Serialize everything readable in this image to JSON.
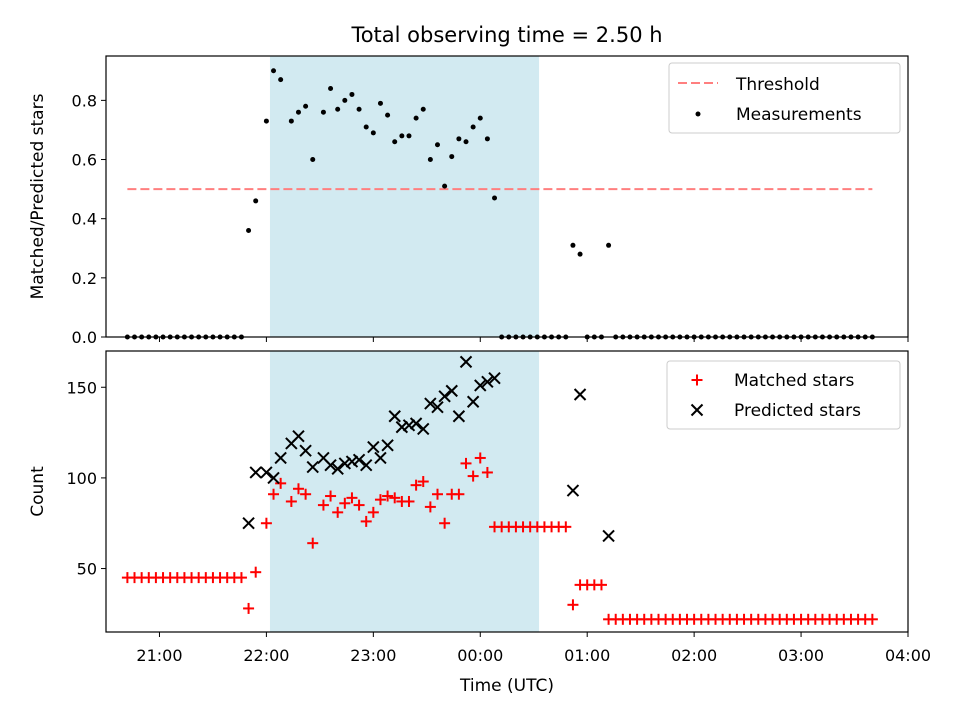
{
  "chart_data": [
    {
      "type": "scatter",
      "title": "Total observing time = 2.50 h",
      "xlabel": "",
      "ylabel": "Matched/Predicted stars",
      "ylim": [
        0,
        0.95
      ],
      "xlim": [
        "20:30",
        "04:00"
      ],
      "yticks": [
        "0.0",
        "0.2",
        "0.4",
        "0.6",
        "0.8"
      ],
      "highlight_span": {
        "from": "22:02",
        "to": "00:33",
        "color": "#add8e6"
      },
      "legend": {
        "position": "top-right"
      },
      "series": [
        {
          "name": "Threshold",
          "kind": "dashed-line",
          "color": "#ff7f7f",
          "points": [
            [
              "20:42",
              0.5
            ],
            [
              "03:40",
              0.5
            ]
          ]
        },
        {
          "name": "Measurements",
          "kind": "dot",
          "color": "#000000",
          "points": [
            [
              "20:42",
              0
            ],
            [
              "20:46",
              0
            ],
            [
              "20:50",
              0
            ],
            [
              "20:54",
              0
            ],
            [
              "20:58",
              0
            ],
            [
              "21:02",
              0
            ],
            [
              "21:06",
              0
            ],
            [
              "21:10",
              0
            ],
            [
              "21:14",
              0
            ],
            [
              "21:18",
              0
            ],
            [
              "21:22",
              0
            ],
            [
              "21:26",
              0
            ],
            [
              "21:30",
              0
            ],
            [
              "21:34",
              0
            ],
            [
              "21:38",
              0
            ],
            [
              "21:42",
              0
            ],
            [
              "21:46",
              0
            ],
            [
              "21:50",
              0.36
            ],
            [
              "21:54",
              0.46
            ],
            [
              "22:00",
              0.73
            ],
            [
              "22:04",
              0.9
            ],
            [
              "22:08",
              0.87
            ],
            [
              "22:14",
              0.73
            ],
            [
              "22:18",
              0.76
            ],
            [
              "22:22",
              0.78
            ],
            [
              "22:26",
              0.6
            ],
            [
              "22:32",
              0.76
            ],
            [
              "22:36",
              0.84
            ],
            [
              "22:40",
              0.77
            ],
            [
              "22:44",
              0.8
            ],
            [
              "22:48",
              0.82
            ],
            [
              "22:52",
              0.77
            ],
            [
              "22:56",
              0.71
            ],
            [
              "23:00",
              0.69
            ],
            [
              "23:04",
              0.79
            ],
            [
              "23:08",
              0.75
            ],
            [
              "23:12",
              0.66
            ],
            [
              "23:16",
              0.68
            ],
            [
              "23:20",
              0.68
            ],
            [
              "23:24",
              0.74
            ],
            [
              "23:28",
              0.77
            ],
            [
              "23:32",
              0.6
            ],
            [
              "23:36",
              0.65
            ],
            [
              "23:40",
              0.51
            ],
            [
              "23:44",
              0.61
            ],
            [
              "23:48",
              0.67
            ],
            [
              "23:52",
              0.66
            ],
            [
              "23:56",
              0.71
            ],
            [
              "00:00",
              0.74
            ],
            [
              "00:04",
              0.67
            ],
            [
              "00:08",
              0.47
            ],
            [
              "00:12",
              0
            ],
            [
              "00:16",
              0
            ],
            [
              "00:20",
              0
            ],
            [
              "00:24",
              0
            ],
            [
              "00:28",
              0
            ],
            [
              "00:32",
              0
            ],
            [
              "00:36",
              0
            ],
            [
              "00:40",
              0
            ],
            [
              "00:44",
              0
            ],
            [
              "00:48",
              0
            ],
            [
              "00:52",
              0.31
            ],
            [
              "00:56",
              0.28
            ],
            [
              "01:00",
              0
            ],
            [
              "01:04",
              0
            ],
            [
              "01:08",
              0
            ],
            [
              "01:12",
              0.31
            ],
            [
              "01:16",
              0
            ],
            [
              "01:20",
              0
            ],
            [
              "01:24",
              0
            ],
            [
              "01:28",
              0
            ],
            [
              "01:32",
              0
            ],
            [
              "01:36",
              0
            ],
            [
              "01:40",
              0
            ],
            [
              "01:44",
              0
            ],
            [
              "01:48",
              0
            ],
            [
              "01:52",
              0
            ],
            [
              "01:56",
              0
            ],
            [
              "02:00",
              0
            ],
            [
              "02:04",
              0
            ],
            [
              "02:08",
              0
            ],
            [
              "02:12",
              0
            ],
            [
              "02:16",
              0
            ],
            [
              "02:20",
              0
            ],
            [
              "02:24",
              0
            ],
            [
              "02:28",
              0
            ],
            [
              "02:32",
              0
            ],
            [
              "02:36",
              0
            ],
            [
              "02:40",
              0
            ],
            [
              "02:44",
              0
            ],
            [
              "02:48",
              0
            ],
            [
              "02:52",
              0
            ],
            [
              "02:56",
              0
            ],
            [
              "03:00",
              0
            ],
            [
              "03:04",
              0
            ],
            [
              "03:08",
              0
            ],
            [
              "03:12",
              0
            ],
            [
              "03:16",
              0
            ],
            [
              "03:20",
              0
            ],
            [
              "03:24",
              0
            ],
            [
              "03:28",
              0
            ],
            [
              "03:32",
              0
            ],
            [
              "03:36",
              0
            ],
            [
              "03:40",
              0
            ]
          ]
        }
      ]
    },
    {
      "type": "scatter",
      "title": "",
      "xlabel": "Time (UTC)",
      "ylabel": "Count",
      "ylim": [
        15,
        170
      ],
      "xlim": [
        "20:30",
        "04:00"
      ],
      "yticks": [
        "50",
        "100",
        "150"
      ],
      "xticks": [
        "21:00",
        "22:00",
        "23:00",
        "00:00",
        "01:00",
        "02:00",
        "03:00",
        "04:00"
      ],
      "highlight_span": {
        "from": "22:02",
        "to": "00:33",
        "color": "#add8e6"
      },
      "legend": {
        "position": "top-right"
      },
      "series": [
        {
          "name": "Matched stars",
          "kind": "plus",
          "color": "#ff0000",
          "points": [
            [
              "20:42",
              45
            ],
            [
              "20:46",
              45
            ],
            [
              "20:50",
              45
            ],
            [
              "20:54",
              45
            ],
            [
              "20:58",
              45
            ],
            [
              "21:02",
              45
            ],
            [
              "21:06",
              45
            ],
            [
              "21:10",
              45
            ],
            [
              "21:14",
              45
            ],
            [
              "21:18",
              45
            ],
            [
              "21:22",
              45
            ],
            [
              "21:26",
              45
            ],
            [
              "21:30",
              45
            ],
            [
              "21:34",
              45
            ],
            [
              "21:38",
              45
            ],
            [
              "21:42",
              45
            ],
            [
              "21:46",
              45
            ],
            [
              "21:50",
              28
            ],
            [
              "21:54",
              48
            ],
            [
              "22:00",
              75
            ],
            [
              "22:04",
              91
            ],
            [
              "22:08",
              97
            ],
            [
              "22:14",
              87
            ],
            [
              "22:18",
              94
            ],
            [
              "22:22",
              91
            ],
            [
              "22:26",
              64
            ],
            [
              "22:32",
              85
            ],
            [
              "22:36",
              90
            ],
            [
              "22:40",
              81
            ],
            [
              "22:44",
              86
            ],
            [
              "22:48",
              89
            ],
            [
              "22:52",
              85
            ],
            [
              "22:56",
              76
            ],
            [
              "23:00",
              81
            ],
            [
              "23:04",
              88
            ],
            [
              "23:08",
              90
            ],
            [
              "23:12",
              89
            ],
            [
              "23:16",
              87
            ],
            [
              "23:20",
              87
            ],
            [
              "23:24",
              96
            ],
            [
              "23:28",
              98
            ],
            [
              "23:32",
              84
            ],
            [
              "23:36",
              91
            ],
            [
              "23:40",
              75
            ],
            [
              "23:44",
              91
            ],
            [
              "23:48",
              91
            ],
            [
              "23:52",
              108
            ],
            [
              "23:56",
              101
            ],
            [
              "00:00",
              111
            ],
            [
              "00:04",
              103
            ],
            [
              "00:08",
              73
            ],
            [
              "00:12",
              73
            ],
            [
              "00:16",
              73
            ],
            [
              "00:20",
              73
            ],
            [
              "00:24",
              73
            ],
            [
              "00:28",
              73
            ],
            [
              "00:32",
              73
            ],
            [
              "00:36",
              73
            ],
            [
              "00:40",
              73
            ],
            [
              "00:44",
              73
            ],
            [
              "00:48",
              73
            ],
            [
              "00:52",
              30
            ],
            [
              "00:56",
              41
            ],
            [
              "01:00",
              41
            ],
            [
              "01:04",
              41
            ],
            [
              "01:08",
              41
            ],
            [
              "01:12",
              22
            ],
            [
              "01:16",
              22
            ],
            [
              "01:20",
              22
            ],
            [
              "01:24",
              22
            ],
            [
              "01:28",
              22
            ],
            [
              "01:32",
              22
            ],
            [
              "01:36",
              22
            ],
            [
              "01:40",
              22
            ],
            [
              "01:44",
              22
            ],
            [
              "01:48",
              22
            ],
            [
              "01:52",
              22
            ],
            [
              "01:56",
              22
            ],
            [
              "02:00",
              22
            ],
            [
              "02:04",
              22
            ],
            [
              "02:08",
              22
            ],
            [
              "02:12",
              22
            ],
            [
              "02:16",
              22
            ],
            [
              "02:20",
              22
            ],
            [
              "02:24",
              22
            ],
            [
              "02:28",
              22
            ],
            [
              "02:32",
              22
            ],
            [
              "02:36",
              22
            ],
            [
              "02:40",
              22
            ],
            [
              "02:44",
              22
            ],
            [
              "02:48",
              22
            ],
            [
              "02:52",
              22
            ],
            [
              "02:56",
              22
            ],
            [
              "03:00",
              22
            ],
            [
              "03:04",
              22
            ],
            [
              "03:08",
              22
            ],
            [
              "03:12",
              22
            ],
            [
              "03:16",
              22
            ],
            [
              "03:20",
              22
            ],
            [
              "03:24",
              22
            ],
            [
              "03:28",
              22
            ],
            [
              "03:32",
              22
            ],
            [
              "03:36",
              22
            ],
            [
              "03:40",
              22
            ]
          ]
        },
        {
          "name": "Predicted stars",
          "kind": "x",
          "color": "#000000",
          "points": [
            [
              "21:50",
              75
            ],
            [
              "21:54",
              103
            ],
            [
              "22:00",
              103
            ],
            [
              "22:04",
              100
            ],
            [
              "22:08",
              111
            ],
            [
              "22:14",
              119
            ],
            [
              "22:18",
              123
            ],
            [
              "22:22",
              115
            ],
            [
              "22:26",
              106
            ],
            [
              "22:32",
              111
            ],
            [
              "22:36",
              107
            ],
            [
              "22:40",
              105
            ],
            [
              "22:44",
              108
            ],
            [
              "22:48",
              109
            ],
            [
              "22:52",
              110
            ],
            [
              "22:56",
              107
            ],
            [
              "23:00",
              117
            ],
            [
              "23:04",
              111
            ],
            [
              "23:08",
              118
            ],
            [
              "23:12",
              134
            ],
            [
              "23:16",
              128
            ],
            [
              "23:20",
              129
            ],
            [
              "23:24",
              130
            ],
            [
              "23:28",
              127
            ],
            [
              "23:32",
              141
            ],
            [
              "23:36",
              139
            ],
            [
              "23:40",
              145
            ],
            [
              "23:44",
              148
            ],
            [
              "23:48",
              134
            ],
            [
              "23:52",
              164
            ],
            [
              "23:56",
              142
            ],
            [
              "00:00",
              151
            ],
            [
              "00:04",
              153
            ],
            [
              "00:08",
              155
            ],
            [
              "00:52",
              93
            ],
            [
              "00:56",
              146
            ],
            [
              "01:12",
              68
            ]
          ]
        }
      ]
    }
  ]
}
